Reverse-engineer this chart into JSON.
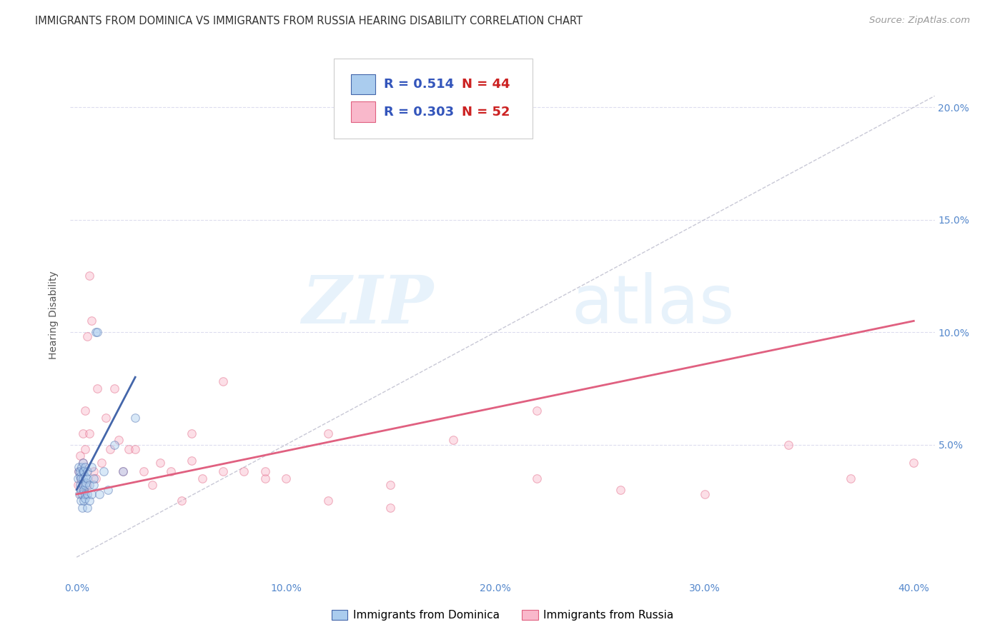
{
  "title": "IMMIGRANTS FROM DOMINICA VS IMMIGRANTS FROM RUSSIA HEARING DISABILITY CORRELATION CHART",
  "source": "Source: ZipAtlas.com",
  "xlabel_ticks": [
    "0.0%",
    "10.0%",
    "20.0%",
    "30.0%",
    "40.0%"
  ],
  "ylabel_ticks": [
    "5.0%",
    "10.0%",
    "15.0%",
    "20.0%"
  ],
  "xlabel_tick_vals": [
    0.0,
    0.1,
    0.2,
    0.3,
    0.4
  ],
  "ylabel_tick_vals": [
    0.05,
    0.1,
    0.15,
    0.2
  ],
  "xlim": [
    -0.003,
    0.41
  ],
  "ylim": [
    -0.01,
    0.225
  ],
  "ylabel": "Hearing Disability",
  "legend_label1": "Immigrants from Dominica",
  "legend_label2": "Immigrants from Russia",
  "R1": "0.514",
  "N1": "44",
  "R2": "0.303",
  "N2": "52",
  "color_blue": "#aaccee",
  "color_pink": "#f9b8cb",
  "color_trendline_blue": "#4466aa",
  "color_trendline_pink": "#e06080",
  "color_refline": "#bbbbcc",
  "color_title": "#333333",
  "color_source": "#999999",
  "color_legend_val": "#3355bb",
  "color_legend_N": "#cc2222",
  "watermark_zip": "ZIP",
  "watermark_atlas": "atlas",
  "background_color": "#ffffff",
  "grid_color": "#ddddee",
  "title_fontsize": 10.5,
  "source_fontsize": 9.5,
  "axis_label_fontsize": 10,
  "tick_fontsize": 10,
  "legend_fontsize": 13,
  "marker_size": 70,
  "marker_alpha": 0.45,
  "marker_linewidth": 0.8,
  "blue_x": [
    0.0005,
    0.001,
    0.001,
    0.0012,
    0.0015,
    0.0015,
    0.0018,
    0.002,
    0.002,
    0.002,
    0.0022,
    0.0025,
    0.0025,
    0.003,
    0.003,
    0.003,
    0.003,
    0.0032,
    0.0035,
    0.0035,
    0.004,
    0.004,
    0.004,
    0.004,
    0.0042,
    0.0045,
    0.005,
    0.005,
    0.005,
    0.0052,
    0.006,
    0.006,
    0.007,
    0.007,
    0.008,
    0.008,
    0.009,
    0.01,
    0.011,
    0.013,
    0.015,
    0.018,
    0.022,
    0.028
  ],
  "blue_y": [
    0.035,
    0.038,
    0.04,
    0.028,
    0.032,
    0.036,
    0.038,
    0.025,
    0.03,
    0.035,
    0.04,
    0.022,
    0.028,
    0.032,
    0.035,
    0.038,
    0.042,
    0.025,
    0.03,
    0.038,
    0.028,
    0.032,
    0.036,
    0.04,
    0.026,
    0.033,
    0.022,
    0.028,
    0.035,
    0.038,
    0.025,
    0.032,
    0.04,
    0.028,
    0.032,
    0.035,
    0.1,
    0.1,
    0.028,
    0.038,
    0.03,
    0.05,
    0.038,
    0.062
  ],
  "pink_x": [
    0.0005,
    0.001,
    0.0015,
    0.002,
    0.002,
    0.003,
    0.003,
    0.003,
    0.004,
    0.004,
    0.005,
    0.005,
    0.006,
    0.006,
    0.007,
    0.008,
    0.009,
    0.01,
    0.012,
    0.014,
    0.016,
    0.018,
    0.02,
    0.022,
    0.025,
    0.028,
    0.032,
    0.036,
    0.04,
    0.045,
    0.05,
    0.055,
    0.06,
    0.07,
    0.08,
    0.09,
    0.1,
    0.12,
    0.15,
    0.18,
    0.22,
    0.26,
    0.3,
    0.34,
    0.37,
    0.4,
    0.15,
    0.09,
    0.055,
    0.07,
    0.12,
    0.22
  ],
  "pink_y": [
    0.032,
    0.038,
    0.045,
    0.028,
    0.035,
    0.032,
    0.042,
    0.055,
    0.048,
    0.065,
    0.032,
    0.098,
    0.055,
    0.125,
    0.105,
    0.038,
    0.035,
    0.075,
    0.042,
    0.062,
    0.048,
    0.075,
    0.052,
    0.038,
    0.048,
    0.048,
    0.038,
    0.032,
    0.042,
    0.038,
    0.025,
    0.043,
    0.035,
    0.038,
    0.038,
    0.035,
    0.035,
    0.025,
    0.022,
    0.052,
    0.035,
    0.03,
    0.028,
    0.05,
    0.035,
    0.042,
    0.032,
    0.038,
    0.055,
    0.078,
    0.055,
    0.065
  ],
  "blue_trend_x0": 0.0,
  "blue_trend_x1": 0.028,
  "blue_trend_y0": 0.03,
  "blue_trend_y1": 0.08,
  "pink_trend_x0": 0.0,
  "pink_trend_x1": 0.4,
  "pink_trend_y0": 0.028,
  "pink_trend_y1": 0.105,
  "ref_line_x0": 0.0,
  "ref_line_x1": 0.41,
  "ref_line_y0": 0.0,
  "ref_line_y1": 0.205
}
